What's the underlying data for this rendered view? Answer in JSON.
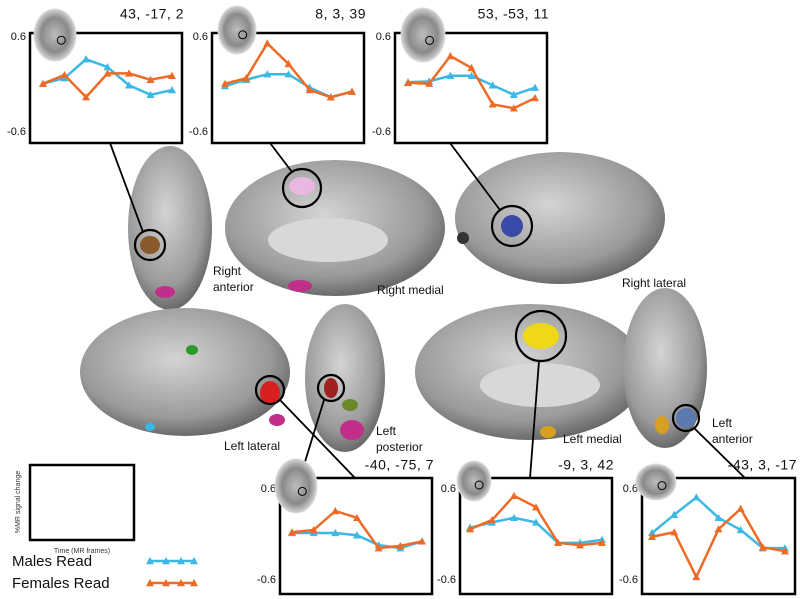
{
  "chart_data": [
    {
      "type": "line",
      "title": "43, -17, 2",
      "categories": [
        null,
        null,
        null,
        null,
        null,
        null,
        null
      ],
      "series": [
        {
          "name": "Males Read",
          "color": "#3cb8e6",
          "values": [
            0.01,
            0.08,
            0.32,
            0.22,
            -0.01,
            -0.13,
            -0.07
          ]
        },
        {
          "name": "Females Read",
          "color": "#ef6b25",
          "values": [
            0.01,
            0.12,
            -0.16,
            0.14,
            0.14,
            0.06,
            0.11
          ]
        }
      ],
      "ylim": [
        -0.6,
        0.6
      ],
      "yticks": [
        0.6,
        -0.6
      ]
    },
    {
      "type": "line",
      "title": "8, 3, 39",
      "categories": [
        null,
        null,
        null,
        null,
        null,
        null,
        null
      ],
      "series": [
        {
          "name": "Males Read",
          "color": "#3cb8e6",
          "values": [
            -0.02,
            0.06,
            0.13,
            0.13,
            -0.04,
            -0.16,
            -0.09
          ]
        },
        {
          "name": "Females Read",
          "color": "#ef6b25",
          "values": [
            0.01,
            0.08,
            0.52,
            0.26,
            -0.07,
            -0.16,
            -0.09
          ]
        }
      ],
      "ylim": [
        -0.6,
        0.6
      ],
      "yticks": [
        0.6,
        -0.6
      ]
    },
    {
      "type": "line",
      "title": "53, -53, 11",
      "categories": [
        null,
        null,
        null,
        null,
        null,
        null,
        null
      ],
      "series": [
        {
          "name": "Males Read",
          "color": "#3cb8e6",
          "values": [
            0.03,
            0.04,
            0.11,
            0.11,
            -0.01,
            -0.13,
            -0.04
          ]
        },
        {
          "name": "Females Read",
          "color": "#ef6b25",
          "values": [
            0.02,
            0.01,
            0.36,
            0.21,
            -0.25,
            -0.3,
            -0.17
          ]
        }
      ],
      "ylim": [
        -0.6,
        0.6
      ],
      "yticks": [
        0.6,
        -0.6
      ]
    },
    {
      "type": "line",
      "title": "-40, -75, 7",
      "categories": [
        null,
        null,
        null,
        null,
        null,
        null,
        null
      ],
      "series": [
        {
          "name": "Males Read",
          "color": "#3cb8e6",
          "values": [
            0.02,
            0.02,
            0.02,
            -0.01,
            -0.14,
            -0.18,
            -0.09
          ]
        },
        {
          "name": "Females Read",
          "color": "#ef6b25",
          "values": [
            0.03,
            0.06,
            0.31,
            0.22,
            -0.18,
            -0.15,
            -0.09
          ]
        }
      ],
      "ylim": [
        -0.6,
        0.6
      ],
      "yticks": [
        0.6,
        -0.6
      ]
    },
    {
      "type": "line",
      "title": "-9, 3, 42",
      "categories": [
        null,
        null,
        null,
        null,
        null,
        null,
        null
      ],
      "series": [
        {
          "name": "Males Read",
          "color": "#3cb8e6",
          "values": [
            0.09,
            0.16,
            0.22,
            0.16,
            -0.11,
            -0.11,
            -0.07
          ]
        },
        {
          "name": "Females Read",
          "color": "#ef6b25",
          "values": [
            0.07,
            0.19,
            0.51,
            0.36,
            -0.11,
            -0.14,
            -0.11
          ]
        }
      ],
      "ylim": [
        -0.6,
        0.6
      ],
      "yticks": [
        0.6,
        -0.6
      ]
    },
    {
      "type": "line",
      "title": "-43, 3, -17",
      "categories": [
        null,
        null,
        null,
        null,
        null,
        null,
        null
      ],
      "series": [
        {
          "name": "Males Read",
          "color": "#3cb8e6",
          "values": [
            0.02,
            0.26,
            0.49,
            0.22,
            0.06,
            -0.18,
            -0.18
          ]
        },
        {
          "name": "Females Read",
          "color": "#ef6b25",
          "values": [
            -0.03,
            0.03,
            -0.56,
            0.07,
            0.34,
            -0.17,
            -0.22
          ]
        }
      ],
      "ylim": [
        -0.6,
        0.6
      ],
      "yticks": [
        0.6,
        -0.6
      ]
    }
  ],
  "views": [
    "Right anterior",
    "Right medial",
    "Right lateral",
    "Left lateral",
    "Left posterior",
    "Left medial",
    "Left anterior"
  ],
  "key": {
    "ylabel": "%MR signal change",
    "xlabel": "Time (MR frames)"
  }
}
